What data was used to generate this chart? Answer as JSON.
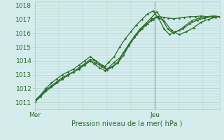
{
  "xlabel": "Pression niveau de la mer( hPa )",
  "background_color": "#d4ecec",
  "grid_color": "#b0d0d0",
  "line_color": "#2d6e2d",
  "ylim": [
    1010.5,
    1018.3
  ],
  "xlim": [
    0,
    100
  ],
  "yticks": [
    1011,
    1012,
    1013,
    1014,
    1015,
    1016,
    1017,
    1018
  ],
  "xtick_positions": [
    0,
    65
  ],
  "xtick_labels": [
    "Mer",
    "Jeu"
  ],
  "vline_x": 65,
  "series": [
    {
      "x": [
        0,
        3,
        6,
        9,
        12,
        15,
        18,
        21,
        24,
        27,
        30,
        32,
        35,
        38,
        40,
        43,
        46,
        49,
        52,
        55,
        58,
        61,
        64,
        67,
        70,
        72,
        75,
        78,
        81,
        84,
        87,
        90,
        93,
        96,
        100
      ],
      "y": [
        1011.1,
        1011.5,
        1011.9,
        1012.2,
        1012.5,
        1012.8,
        1013.0,
        1013.2,
        1013.5,
        1013.7,
        1014.0,
        1013.8,
        1013.5,
        1013.3,
        1013.5,
        1013.9,
        1014.2,
        1014.8,
        1015.4,
        1015.9,
        1016.3,
        1016.7,
        1017.0,
        1017.2,
        1017.15,
        1017.1,
        1017.05,
        1017.1,
        1017.15,
        1017.2,
        1017.2,
        1017.25,
        1017.2,
        1017.2,
        1017.2
      ]
    },
    {
      "x": [
        0,
        3,
        6,
        9,
        12,
        15,
        18,
        21,
        24,
        27,
        30,
        32,
        35,
        38,
        40,
        43,
        46,
        49,
        52,
        55,
        58,
        61,
        64,
        67,
        70,
        73,
        76,
        80,
        84,
        88,
        92,
        96,
        100
      ],
      "y": [
        1011.1,
        1011.5,
        1012.0,
        1012.4,
        1012.7,
        1013.0,
        1013.2,
        1013.4,
        1013.7,
        1014.0,
        1014.3,
        1014.1,
        1013.8,
        1013.6,
        1013.9,
        1014.3,
        1015.0,
        1015.6,
        1016.1,
        1016.6,
        1017.0,
        1017.4,
        1017.6,
        1017.1,
        1016.3,
        1015.9,
        1016.1,
        1016.3,
        1016.7,
        1016.95,
        1017.1,
        1017.2,
        1017.2
      ]
    },
    {
      "x": [
        0,
        3,
        6,
        9,
        12,
        15,
        18,
        21,
        24,
        27,
        30,
        33,
        36,
        39,
        42,
        45,
        48,
        51,
        54,
        57,
        60,
        63,
        66,
        69,
        72,
        75,
        78,
        81,
        85,
        89,
        93,
        97,
        100
      ],
      "y": [
        1011.0,
        1011.4,
        1011.8,
        1012.1,
        1012.4,
        1012.7,
        1013.0,
        1013.2,
        1013.5,
        1013.8,
        1014.1,
        1014.0,
        1013.7,
        1013.4,
        1013.6,
        1013.9,
        1014.6,
        1015.2,
        1015.8,
        1016.3,
        1016.7,
        1017.1,
        1017.55,
        1017.0,
        1016.3,
        1016.0,
        1016.2,
        1016.5,
        1016.9,
        1017.1,
        1017.2,
        1017.25,
        1017.2
      ]
    },
    {
      "x": [
        0,
        3,
        6,
        9,
        12,
        15,
        18,
        21,
        24,
        27,
        30,
        33,
        36,
        39,
        42,
        45,
        48,
        51,
        54,
        57,
        60,
        63,
        66,
        70,
        74,
        78,
        82,
        86,
        90,
        94,
        98,
        100
      ],
      "y": [
        1011.05,
        1011.4,
        1011.8,
        1012.1,
        1012.4,
        1012.7,
        1012.95,
        1013.2,
        1013.4,
        1013.7,
        1014.0,
        1013.85,
        1013.6,
        1013.35,
        1013.55,
        1013.85,
        1014.4,
        1015.1,
        1015.7,
        1016.2,
        1016.6,
        1016.95,
        1017.2,
        1016.9,
        1016.2,
        1015.9,
        1016.1,
        1016.4,
        1016.8,
        1017.0,
        1017.15,
        1017.2
      ]
    }
  ],
  "marker": "D",
  "marker_size": 1.8,
  "line_width": 0.9
}
